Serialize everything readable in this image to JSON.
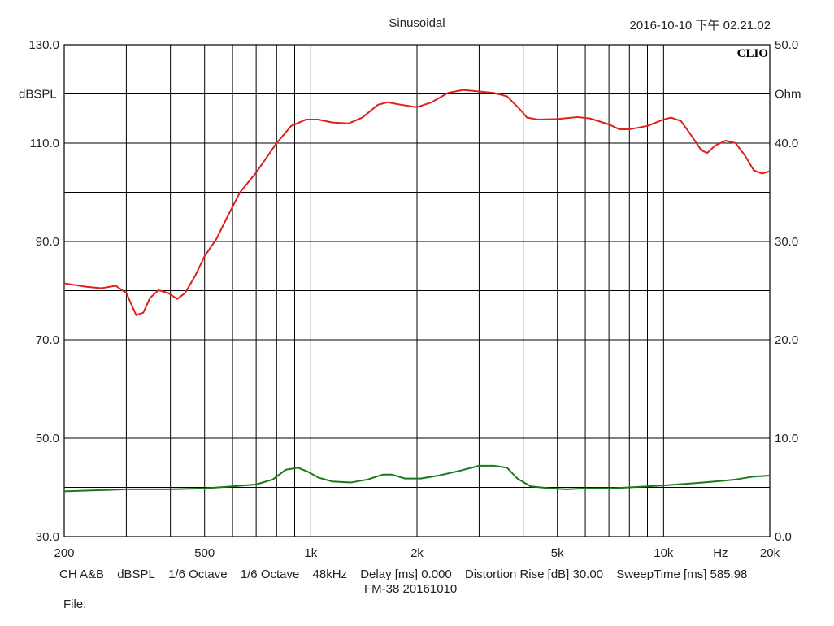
{
  "header": {
    "title": "Sinusoidal",
    "datetime": "2016-10-10 下午 02.21.02"
  },
  "footer": {
    "fields": [
      "CH A&B",
      "dBSPL",
      "1/6 Octave",
      "1/6 Octave",
      "48kHz",
      "Delay [ms] 0.000",
      "Distortion Rise [dB] 30.00",
      "SweepTime [ms] 585.98"
    ],
    "subtitle": "FM-38   20161010",
    "file_label": "File:"
  },
  "chart_data": {
    "type": "line",
    "brand": "CLIO",
    "x_scale": "log",
    "xlim": [
      200,
      20000
    ],
    "xlabel": "Hz",
    "x_ticks": [
      {
        "value": 200,
        "label": "200"
      },
      {
        "value": 500,
        "label": "500"
      },
      {
        "value": 1000,
        "label": "1k"
      },
      {
        "value": 2000,
        "label": "2k"
      },
      {
        "value": 5000,
        "label": "5k"
      },
      {
        "value": 10000,
        "label": "10k"
      },
      {
        "value": 20000,
        "label": "20k"
      }
    ],
    "y_left": {
      "label": "dBSPL",
      "lim": [
        30,
        130
      ],
      "ticks": [
        {
          "value": 30,
          "label": "30.0"
        },
        {
          "value": 50,
          "label": "50.0"
        },
        {
          "value": 70,
          "label": "70.0"
        },
        {
          "value": 90,
          "label": "90.0"
        },
        {
          "value": 110,
          "label": "110.0"
        },
        {
          "value": 130,
          "label": "130.0"
        }
      ]
    },
    "y_right": {
      "label": "Ohm",
      "lim": [
        0,
        50
      ],
      "ticks": [
        {
          "value": 0,
          "label": "0.0"
        },
        {
          "value": 10,
          "label": "10.0"
        },
        {
          "value": 20,
          "label": "20.0"
        },
        {
          "value": 30,
          "label": "30.0"
        },
        {
          "value": 40,
          "label": "40.0"
        },
        {
          "value": 50,
          "label": "50.0"
        }
      ]
    },
    "grid": true,
    "series": [
      {
        "color": "#e0201c",
        "axis": "left",
        "points": [
          [
            200,
            81.5
          ],
          [
            230,
            80.8
          ],
          [
            255,
            80.5
          ],
          [
            280,
            81
          ],
          [
            300,
            79.5
          ],
          [
            320,
            75
          ],
          [
            335,
            75.5
          ],
          [
            350,
            78.5
          ],
          [
            370,
            80.1
          ],
          [
            395,
            79.5
          ],
          [
            418,
            78.3
          ],
          [
            440,
            79.5
          ],
          [
            470,
            83
          ],
          [
            500,
            87
          ],
          [
            540,
            90.5
          ],
          [
            580,
            95
          ],
          [
            630,
            100
          ],
          [
            700,
            104
          ],
          [
            800,
            110
          ],
          [
            880,
            113.5
          ],
          [
            970,
            114.8
          ],
          [
            1050,
            114.8
          ],
          [
            1150,
            114.2
          ],
          [
            1280,
            114
          ],
          [
            1400,
            115.2
          ],
          [
            1550,
            117.8
          ],
          [
            1650,
            118.3
          ],
          [
            1800,
            117.8
          ],
          [
            2000,
            117.3
          ],
          [
            2200,
            118.3
          ],
          [
            2450,
            120.2
          ],
          [
            2700,
            120.8
          ],
          [
            3000,
            120.5
          ],
          [
            3300,
            120.2
          ],
          [
            3600,
            119.5
          ],
          [
            3900,
            117
          ],
          [
            4100,
            115.2
          ],
          [
            4400,
            114.8
          ],
          [
            5000,
            114.9
          ],
          [
            5700,
            115.3
          ],
          [
            6200,
            115
          ],
          [
            7000,
            113.8
          ],
          [
            7500,
            112.8
          ],
          [
            8000,
            112.8
          ],
          [
            9000,
            113.5
          ],
          [
            10000,
            114.8
          ],
          [
            10500,
            115.2
          ],
          [
            11200,
            114.5
          ],
          [
            12000,
            111.5
          ],
          [
            12800,
            108.5
          ],
          [
            13300,
            108
          ],
          [
            14000,
            109.5
          ],
          [
            15000,
            110.5
          ],
          [
            16000,
            110
          ],
          [
            17000,
            107.5
          ],
          [
            18000,
            104.5
          ],
          [
            19000,
            103.8
          ],
          [
            20000,
            104.3
          ]
        ]
      },
      {
        "color": "#1a7a1a",
        "axis": "right",
        "points": [
          [
            200,
            4.6
          ],
          [
            300,
            4.8
          ],
          [
            400,
            4.8
          ],
          [
            500,
            4.9
          ],
          [
            600,
            5.1
          ],
          [
            700,
            5.3
          ],
          [
            780,
            5.8
          ],
          [
            850,
            6.8
          ],
          [
            920,
            7.0
          ],
          [
            980,
            6.6
          ],
          [
            1050,
            6.0
          ],
          [
            1150,
            5.6
          ],
          [
            1300,
            5.5
          ],
          [
            1450,
            5.8
          ],
          [
            1600,
            6.3
          ],
          [
            1700,
            6.3
          ],
          [
            1850,
            5.9
          ],
          [
            2050,
            5.9
          ],
          [
            2300,
            6.2
          ],
          [
            2650,
            6.7
          ],
          [
            3000,
            7.2
          ],
          [
            3300,
            7.2
          ],
          [
            3600,
            7.0
          ],
          [
            3850,
            5.9
          ],
          [
            4200,
            5.1
          ],
          [
            4800,
            4.9
          ],
          [
            5300,
            4.8
          ],
          [
            6000,
            4.9
          ],
          [
            7000,
            4.9
          ],
          [
            8000,
            5.0
          ],
          [
            9000,
            5.1
          ],
          [
            10000,
            5.2
          ],
          [
            12000,
            5.4
          ],
          [
            14000,
            5.6
          ],
          [
            16000,
            5.8
          ],
          [
            18000,
            6.1
          ],
          [
            20000,
            6.2
          ]
        ]
      }
    ]
  }
}
